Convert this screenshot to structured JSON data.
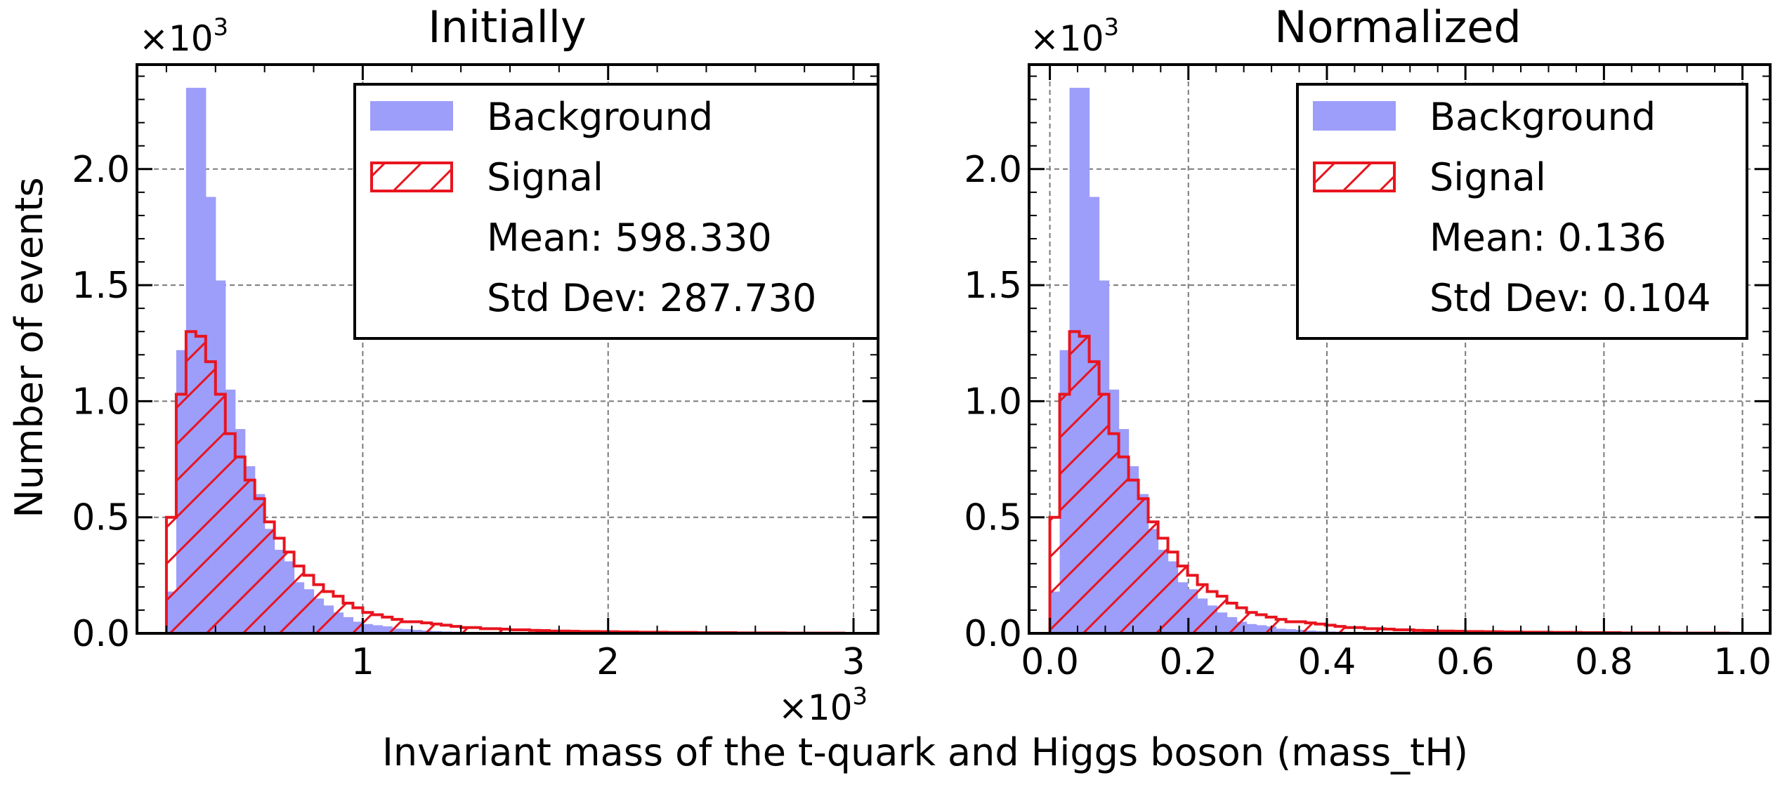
{
  "figure": {
    "xlabel": "Invariant mass of the t-quark and Higgs boson (mass_tH)",
    "ylabel": "Number of events",
    "y_multiplier": "×10",
    "y_multiplier_exp": "3",
    "x_multiplier": "×10",
    "x_multiplier_exp": "3"
  },
  "colors": {
    "background_fill": "#9d9dfa",
    "signal_edge": "#e8141e",
    "grid": "#7a7a7a"
  },
  "chart_data": [
    {
      "type": "bar",
      "title": "Initially",
      "x_unit_note": "x values in units of 10^3",
      "ylim": [
        0,
        2.45
      ],
      "xlim": [
        0.08,
        3.1
      ],
      "xticks": [
        1,
        2,
        3
      ],
      "xtick_labels": [
        "1",
        "2",
        "3"
      ],
      "yticks": [
        0.0,
        0.5,
        1.0,
        1.5,
        2.0
      ],
      "ytick_labels": [
        "0.0",
        "0.5",
        "1.0",
        "1.5",
        "2.0"
      ],
      "grid": true,
      "legend_position": "top-right",
      "legend": {
        "background_label": "Background",
        "signal_label": "Signal",
        "mean_text": "Mean: 598.330",
        "std_text": "Std Dev: 287.730"
      },
      "bin_edges": [
        0.2,
        0.24,
        0.28,
        0.32,
        0.36,
        0.4,
        0.44,
        0.48,
        0.52,
        0.56,
        0.6,
        0.64,
        0.68,
        0.72,
        0.76,
        0.8,
        0.84,
        0.88,
        0.92,
        0.96,
        1.0,
        1.04,
        1.08,
        1.12,
        1.16,
        1.2,
        1.24,
        1.28,
        1.32,
        1.36,
        1.4,
        1.44,
        1.48,
        1.52,
        1.56,
        1.6,
        1.64,
        1.68,
        1.72,
        1.76,
        1.8,
        1.84,
        1.88,
        1.92,
        1.96,
        2.0,
        2.04,
        2.08,
        2.12,
        2.16,
        2.2,
        2.24,
        2.28,
        2.32,
        2.36,
        2.4,
        2.44,
        2.48,
        2.52,
        2.56,
        2.6,
        2.64,
        2.68,
        2.72,
        2.76,
        2.8,
        2.84,
        2.88,
        2.92,
        2.96,
        3.0
      ],
      "series": [
        {
          "name": "Background",
          "style": "filled",
          "values": [
            0.18,
            1.22,
            2.35,
            2.35,
            1.88,
            1.52,
            1.05,
            0.88,
            0.72,
            0.6,
            0.45,
            0.36,
            0.31,
            0.22,
            0.19,
            0.15,
            0.12,
            0.09,
            0.07,
            0.05,
            0.04,
            0.035,
            0.03,
            0.02,
            0.018,
            0.015,
            0.012,
            0.01,
            0.008,
            0.007,
            0.006,
            0.005,
            0.004,
            0.003,
            0.003,
            0.002,
            0.002,
            0.002,
            0.001,
            0.001,
            0.001,
            0.001,
            0.001,
            0.001,
            0.001,
            0.001,
            0.001,
            0.0,
            0.0,
            0.0,
            0.0,
            0.0,
            0.0,
            0.0,
            0.0,
            0.0,
            0.0,
            0.0,
            0.0,
            0.0,
            0.0,
            0.0,
            0.0,
            0.0,
            0.0,
            0.0,
            0.0,
            0.0,
            0.0,
            0.0
          ]
        },
        {
          "name": "Signal",
          "style": "hatched-step",
          "values": [
            0.5,
            1.03,
            1.3,
            1.28,
            1.17,
            1.03,
            0.86,
            0.76,
            0.66,
            0.58,
            0.48,
            0.41,
            0.35,
            0.29,
            0.25,
            0.21,
            0.18,
            0.16,
            0.13,
            0.11,
            0.09,
            0.08,
            0.07,
            0.06,
            0.05,
            0.05,
            0.045,
            0.04,
            0.035,
            0.03,
            0.025,
            0.025,
            0.02,
            0.02,
            0.018,
            0.015,
            0.015,
            0.013,
            0.012,
            0.01,
            0.01,
            0.009,
            0.008,
            0.008,
            0.007,
            0.007,
            0.006,
            0.006,
            0.005,
            0.005,
            0.005,
            0.004,
            0.004,
            0.004,
            0.003,
            0.003,
            0.003,
            0.003,
            0.002,
            0.002,
            0.002,
            0.002,
            0.002,
            0.001,
            0.001,
            0.001,
            0.001,
            0.001,
            0.001,
            0.0
          ]
        }
      ]
    },
    {
      "type": "bar",
      "title": "Normalized",
      "ylim": [
        0,
        2.45
      ],
      "xlim": [
        -0.03,
        1.04
      ],
      "xticks": [
        0.0,
        0.2,
        0.4,
        0.6,
        0.8,
        1.0
      ],
      "xtick_labels": [
        "0.0",
        "0.2",
        "0.4",
        "0.6",
        "0.8",
        "1.0"
      ],
      "yticks": [
        0.0,
        0.5,
        1.0,
        1.5,
        2.0
      ],
      "ytick_labels": [
        "0.0",
        "0.5",
        "1.0",
        "1.5",
        "2.0"
      ],
      "grid": true,
      "legend_position": "top-right",
      "legend": {
        "background_label": "Background",
        "signal_label": "Signal",
        "mean_text": "Mean: 0.136",
        "std_text": "Std Dev: 0.104"
      },
      "bin_edges": [
        0.0,
        0.0142,
        0.0284,
        0.0426,
        0.0568,
        0.071,
        0.0852,
        0.0994,
        0.1136,
        0.1278,
        0.142,
        0.1562,
        0.1704,
        0.1846,
        0.1988,
        0.213,
        0.2272,
        0.2414,
        0.2556,
        0.2698,
        0.284,
        0.2982,
        0.3124,
        0.3266,
        0.3408,
        0.355,
        0.3692,
        0.3834,
        0.3976,
        0.4118,
        0.426,
        0.4402,
        0.4544,
        0.4686,
        0.4828,
        0.497,
        0.5112,
        0.5254,
        0.5396,
        0.5538,
        0.568,
        0.5822,
        0.5964,
        0.6106,
        0.6248,
        0.639,
        0.6532,
        0.6674,
        0.6816,
        0.6958,
        0.71,
        0.7242,
        0.7384,
        0.7526,
        0.7668,
        0.781,
        0.7952,
        0.8094,
        0.8236,
        0.8378,
        0.852,
        0.8662,
        0.8804,
        0.8946,
        0.9088,
        0.923,
        0.9372,
        0.9514,
        0.9656,
        0.9798,
        1.0
      ],
      "series": [
        {
          "name": "Background",
          "style": "filled",
          "values": [
            0.18,
            1.22,
            2.35,
            2.35,
            1.88,
            1.52,
            1.05,
            0.88,
            0.72,
            0.6,
            0.45,
            0.36,
            0.31,
            0.22,
            0.19,
            0.15,
            0.12,
            0.09,
            0.07,
            0.05,
            0.04,
            0.035,
            0.03,
            0.02,
            0.018,
            0.015,
            0.012,
            0.01,
            0.008,
            0.007,
            0.006,
            0.005,
            0.004,
            0.003,
            0.003,
            0.002,
            0.002,
            0.002,
            0.001,
            0.001,
            0.001,
            0.001,
            0.001,
            0.001,
            0.001,
            0.001,
            0.001,
            0.0,
            0.0,
            0.0,
            0.0,
            0.0,
            0.0,
            0.0,
            0.0,
            0.0,
            0.0,
            0.0,
            0.0,
            0.0,
            0.0,
            0.0,
            0.0,
            0.0,
            0.0,
            0.0,
            0.0,
            0.0,
            0.0,
            0.0
          ]
        },
        {
          "name": "Signal",
          "style": "hatched-step",
          "values": [
            0.5,
            1.03,
            1.3,
            1.28,
            1.17,
            1.03,
            0.86,
            0.76,
            0.66,
            0.58,
            0.48,
            0.41,
            0.35,
            0.29,
            0.25,
            0.21,
            0.18,
            0.16,
            0.13,
            0.11,
            0.09,
            0.08,
            0.07,
            0.06,
            0.05,
            0.05,
            0.045,
            0.04,
            0.035,
            0.03,
            0.025,
            0.025,
            0.02,
            0.02,
            0.018,
            0.015,
            0.015,
            0.013,
            0.012,
            0.01,
            0.01,
            0.009,
            0.008,
            0.008,
            0.007,
            0.007,
            0.006,
            0.006,
            0.005,
            0.005,
            0.005,
            0.004,
            0.004,
            0.004,
            0.003,
            0.003,
            0.003,
            0.003,
            0.002,
            0.002,
            0.002,
            0.002,
            0.002,
            0.001,
            0.001,
            0.001,
            0.001,
            0.001,
            0.001,
            0.0
          ]
        }
      ]
    }
  ]
}
